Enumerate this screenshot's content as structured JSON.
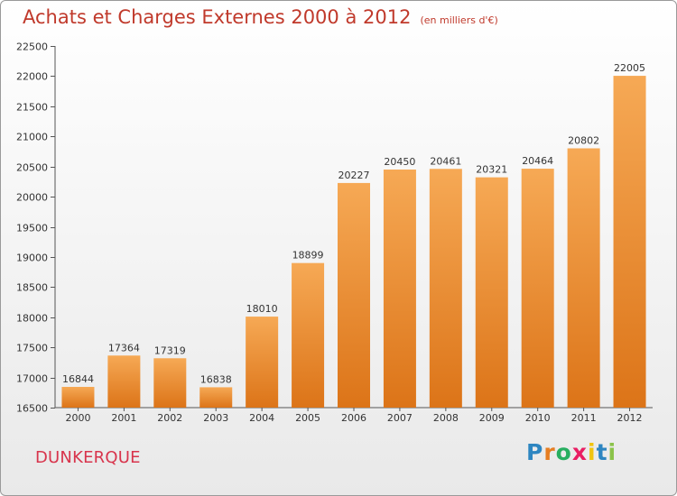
{
  "header": {
    "title": "Achats et Charges Externes 2000 à 2012",
    "subtitle": "(en milliers d'€)"
  },
  "footer": {
    "city": "DUNKERQUE",
    "logo_letters": [
      "P",
      "r",
      "o",
      "x",
      "i",
      "t",
      "i"
    ],
    "logo_colors": [
      "#2e86c1",
      "#e67e22",
      "#27ae60",
      "#e91e63",
      "#f1c40f",
      "#2e86c1",
      "#8bc34a"
    ]
  },
  "chart_data": {
    "type": "bar",
    "title": "Achats et Charges Externes 2000 à 2012",
    "categories": [
      "2000",
      "2001",
      "2002",
      "2003",
      "2004",
      "2005",
      "2006",
      "2007",
      "2008",
      "2009",
      "2010",
      "2011",
      "2012"
    ],
    "values": [
      16844,
      17364,
      17319,
      16838,
      18010,
      18899,
      20227,
      20450,
      20461,
      20321,
      20464,
      20802,
      22005
    ],
    "ylim": [
      16500,
      22500
    ],
    "yticks": [
      16500,
      17000,
      17500,
      18000,
      18500,
      19000,
      19500,
      20000,
      20500,
      21000,
      21500,
      22000,
      22500
    ],
    "grid": false,
    "bar_color": "#f0913a"
  }
}
